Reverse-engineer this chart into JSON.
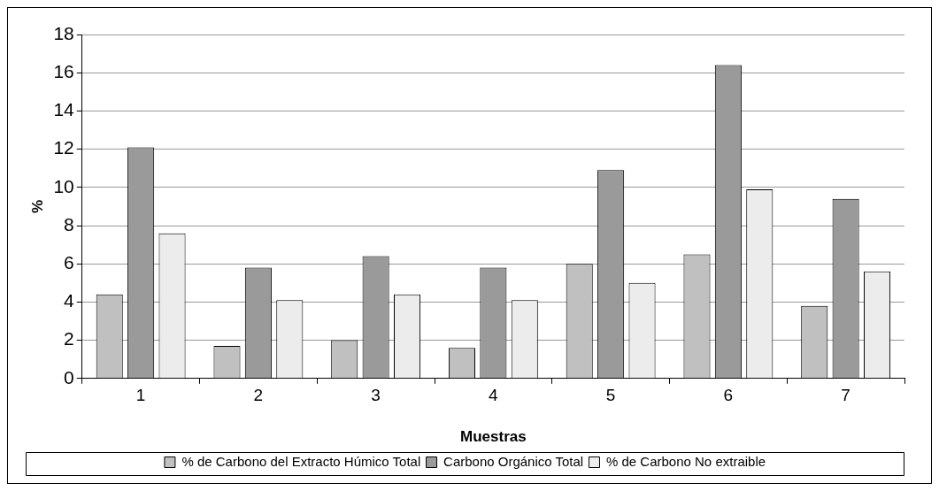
{
  "chart_data": {
    "type": "bar",
    "xlabel": "Muestras",
    "ylabel": "%",
    "categories": [
      "1",
      "2",
      "3",
      "4",
      "5",
      "6",
      "7"
    ],
    "series": [
      {
        "name": "% de Carbono del Extracto Húmico Total",
        "color": "#c0c0c0",
        "values": [
          4.4,
          1.7,
          2.0,
          1.6,
          6.0,
          6.5,
          3.8
        ]
      },
      {
        "name": "Carbono Orgánico Total",
        "color": "#9a9a9a",
        "values": [
          12.1,
          5.8,
          6.4,
          5.8,
          10.9,
          16.4,
          9.4
        ]
      },
      {
        "name": "% de Carbono No extraible",
        "color": "#ececec",
        "values": [
          7.6,
          4.1,
          4.4,
          4.1,
          5.0,
          9.9,
          5.6
        ]
      }
    ],
    "ylim": [
      0,
      18
    ],
    "yticks": [
      0,
      2,
      4,
      6,
      8,
      10,
      12,
      14,
      16,
      18
    ],
    "grid": "y",
    "legend": "bottom"
  }
}
